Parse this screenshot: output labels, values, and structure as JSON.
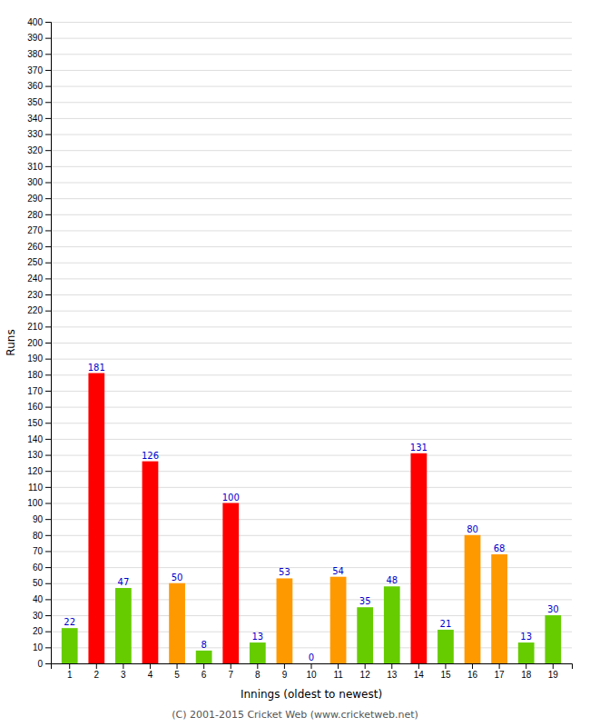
{
  "chart_data": {
    "type": "bar",
    "xlabel": "Innings (oldest to newest)",
    "ylabel": "Runs",
    "annotations": [
      "(C) 2001-2015 Cricket Web (www.cricketweb.net)"
    ],
    "categories": [
      "1",
      "2",
      "3",
      "4",
      "5",
      "6",
      "7",
      "8",
      "9",
      "10",
      "11",
      "12",
      "13",
      "14",
      "15",
      "16",
      "17",
      "18",
      "19"
    ],
    "values": [
      22,
      181,
      47,
      126,
      50,
      8,
      100,
      13,
      53,
      0,
      54,
      35,
      48,
      131,
      21,
      80,
      68,
      13,
      30
    ],
    "colors": [
      "#66cc00",
      "#ff0000",
      "#66cc00",
      "#ff0000",
      "#ff9900",
      "#66cc00",
      "#ff0000",
      "#66cc00",
      "#ff9900",
      "#66cc00",
      "#ff9900",
      "#66cc00",
      "#66cc00",
      "#ff0000",
      "#66cc00",
      "#ff9900",
      "#ff9900",
      "#66cc00",
      "#66cc00"
    ],
    "ylim": [
      0,
      400
    ],
    "yticks": [
      0,
      10,
      20,
      30,
      40,
      50,
      60,
      70,
      80,
      90,
      100,
      110,
      120,
      130,
      140,
      150,
      160,
      170,
      180,
      190,
      200,
      210,
      220,
      230,
      240,
      250,
      260,
      270,
      280,
      290,
      300,
      310,
      320,
      330,
      340,
      350,
      360,
      370,
      380,
      390,
      400
    ],
    "grid": true,
    "data_labels": true
  }
}
